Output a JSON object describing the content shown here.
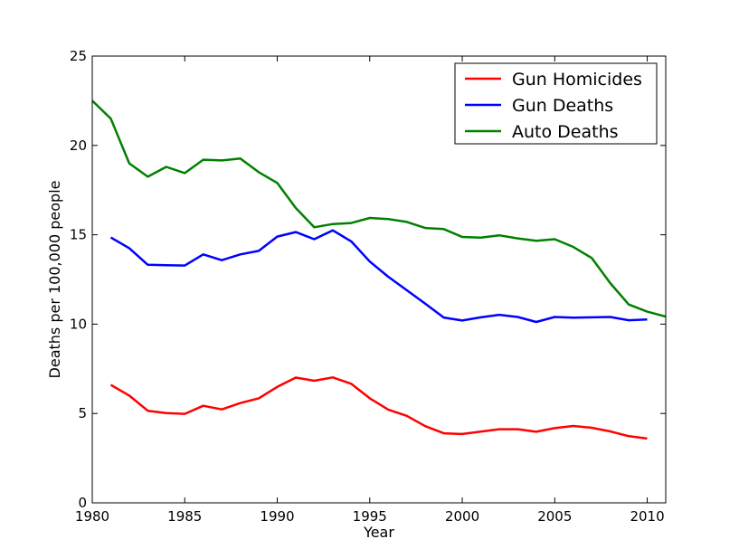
{
  "chart_data": {
    "type": "line",
    "title": "",
    "xlabel": "Year",
    "ylabel": "Deaths per 100,000 people",
    "xlim": [
      1980,
      2011
    ],
    "ylim": [
      0,
      25
    ],
    "x_ticks": [
      1980,
      1985,
      1990,
      1995,
      2000,
      2005,
      2010
    ],
    "y_ticks": [
      0,
      5,
      10,
      15,
      20,
      25
    ],
    "grid": false,
    "legend_position": "top-right",
    "series": [
      {
        "name": "Gun Homicides",
        "color": "#ff0000",
        "x": [
          1981,
          1982,
          1983,
          1984,
          1985,
          1986,
          1987,
          1988,
          1989,
          1990,
          1991,
          1992,
          1993,
          1994,
          1995,
          1996,
          1997,
          1998,
          1999,
          2000,
          2001,
          2002,
          2003,
          2004,
          2005,
          2006,
          2007,
          2008,
          2009,
          2010
        ],
        "values": [
          6.6,
          6.0,
          5.15,
          5.02,
          4.98,
          5.43,
          5.23,
          5.58,
          5.85,
          6.49,
          7.01,
          6.83,
          7.02,
          6.66,
          5.85,
          5.22,
          4.87,
          4.29,
          3.89,
          3.85,
          3.99,
          4.12,
          4.12,
          3.98,
          4.18,
          4.3,
          4.2,
          4.0,
          3.73,
          3.6
        ]
      },
      {
        "name": "Gun Deaths",
        "color": "#0000ff",
        "x": [
          1981,
          1982,
          1983,
          1984,
          1985,
          1986,
          1987,
          1988,
          1989,
          1990,
          1991,
          1992,
          1993,
          1994,
          1995,
          1996,
          1997,
          1998,
          1999,
          2000,
          2001,
          2002,
          2003,
          2004,
          2005,
          2006,
          2007,
          2008,
          2009,
          2010
        ],
        "values": [
          14.85,
          14.25,
          13.32,
          13.3,
          13.28,
          13.9,
          13.58,
          13.9,
          14.1,
          14.9,
          15.15,
          14.75,
          15.25,
          14.63,
          13.5,
          12.65,
          11.9,
          11.15,
          10.37,
          10.2,
          10.38,
          10.52,
          10.4,
          10.12,
          10.4,
          10.36,
          10.38,
          10.4,
          10.22,
          10.26
        ]
      },
      {
        "name": "Auto Deaths",
        "color": "#008000",
        "x": [
          1980,
          1981,
          1982,
          1983,
          1984,
          1985,
          1986,
          1987,
          1988,
          1989,
          1990,
          1991,
          1992,
          1993,
          1994,
          1995,
          1996,
          1997,
          1998,
          1999,
          2000,
          2001,
          2002,
          2003,
          2004,
          2005,
          2006,
          2007,
          2008,
          2009,
          2010,
          2011
        ],
        "values": [
          22.5,
          21.5,
          19.0,
          18.25,
          18.8,
          18.45,
          19.2,
          19.16,
          19.27,
          18.5,
          17.9,
          16.5,
          15.42,
          15.6,
          15.66,
          15.94,
          15.88,
          15.72,
          15.38,
          15.32,
          14.88,
          14.84,
          14.97,
          14.8,
          14.66,
          14.75,
          14.32,
          13.7,
          12.3,
          11.1,
          10.7,
          10.42
        ]
      }
    ]
  }
}
